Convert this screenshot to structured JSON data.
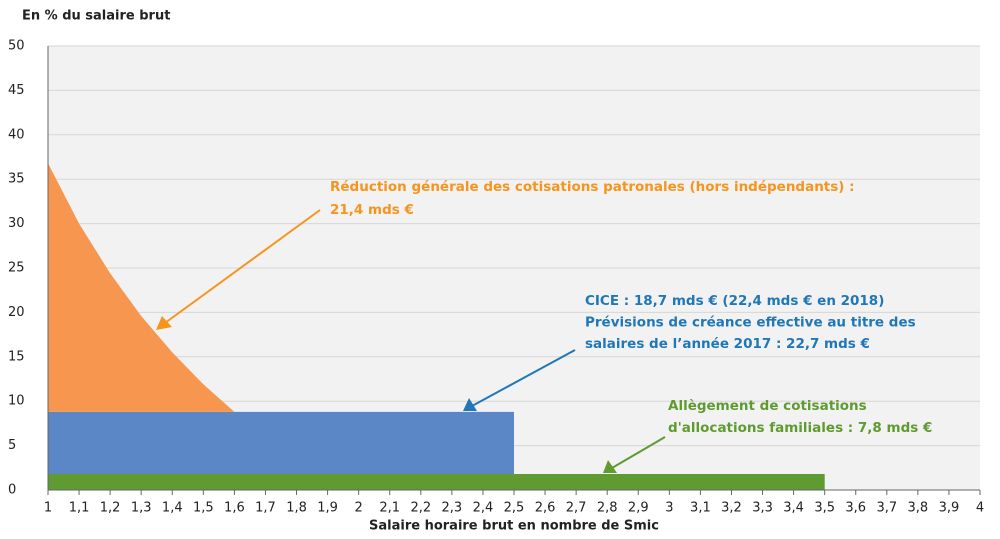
{
  "chart_data": {
    "type": "area",
    "stacked": true,
    "y_axis_title": "En % du salaire brut",
    "x_axis_title": "Salaire horaire brut en nombre de Smic",
    "xlim": [
      1,
      4
    ],
    "ylim": [
      0,
      50
    ],
    "yticks": [
      0,
      5,
      10,
      15,
      20,
      25,
      30,
      35,
      40,
      45,
      50
    ],
    "xticks": [
      1,
      {
        "value": 1.1,
        "label": "1,1"
      },
      {
        "value": 1.2,
        "label": "1,2"
      },
      {
        "value": 1.3,
        "label": "1,3"
      },
      {
        "value": 1.4,
        "label": "1,4"
      },
      {
        "value": 1.5,
        "label": "1,5"
      },
      {
        "value": 1.6,
        "label": "1,6"
      },
      {
        "value": 1.7,
        "label": "1,7"
      },
      {
        "value": 1.8,
        "label": "1,8"
      },
      {
        "value": 1.9,
        "label": "1,9"
      },
      2,
      {
        "value": 2.1,
        "label": "2,1"
      },
      {
        "value": 2.2,
        "label": "2,2"
      },
      {
        "value": 2.3,
        "label": "2,3"
      },
      {
        "value": 2.4,
        "label": "2,4"
      },
      {
        "value": 2.5,
        "label": "2,5"
      },
      {
        "value": 2.6,
        "label": "2,6"
      },
      {
        "value": 2.7,
        "label": "2,7"
      },
      {
        "value": 2.8,
        "label": "2,8"
      },
      {
        "value": 2.9,
        "label": "2,9"
      },
      3,
      {
        "value": 3.1,
        "label": "3,1"
      },
      {
        "value": 3.2,
        "label": "3,2"
      },
      {
        "value": 3.3,
        "label": "3,3"
      },
      {
        "value": 3.4,
        "label": "3,4"
      },
      {
        "value": 3.5,
        "label": "3,5"
      },
      {
        "value": 3.6,
        "label": "3,6"
      },
      {
        "value": 3.7,
        "label": "3,7"
      },
      {
        "value": 3.8,
        "label": "3,8"
      },
      {
        "value": 3.9,
        "label": "3,9"
      },
      4
    ],
    "grid": true,
    "series": [
      {
        "color": "#5f9b30",
        "x": [
          1,
          3.5
        ],
        "values": [
          1.8,
          1.8
        ]
      },
      {
        "color": "#5b87c6",
        "x": [
          1,
          2.5
        ],
        "values": [
          7,
          7
        ]
      },
      {
        "color": "#f6964f",
        "x": [
          1,
          1.1,
          1.2,
          1.3,
          1.4,
          1.5,
          1.6
        ],
        "values": [
          28.0,
          21.2,
          15.6,
          10.8,
          6.7,
          3.1,
          0
        ]
      }
    ],
    "annotations": [
      {
        "color": "#f7941d",
        "lines": [
          "Réduction générale des cotisations patronales (hors indépendants) :",
          "21,4 mds €"
        ]
      },
      {
        "color": "#1f77b8",
        "lines": [
          "CICE : 18,7 mds € (22,4 mds € en 2018)",
          "Prévisions de créance effective au titre des",
          "salaires de l’année 2017 : 22,7 mds €"
        ]
      },
      {
        "color": "#5f9b30",
        "lines": [
          "Allègement de cotisations",
          "d'allocations  familiales : 7,8 mds €"
        ]
      }
    ]
  }
}
